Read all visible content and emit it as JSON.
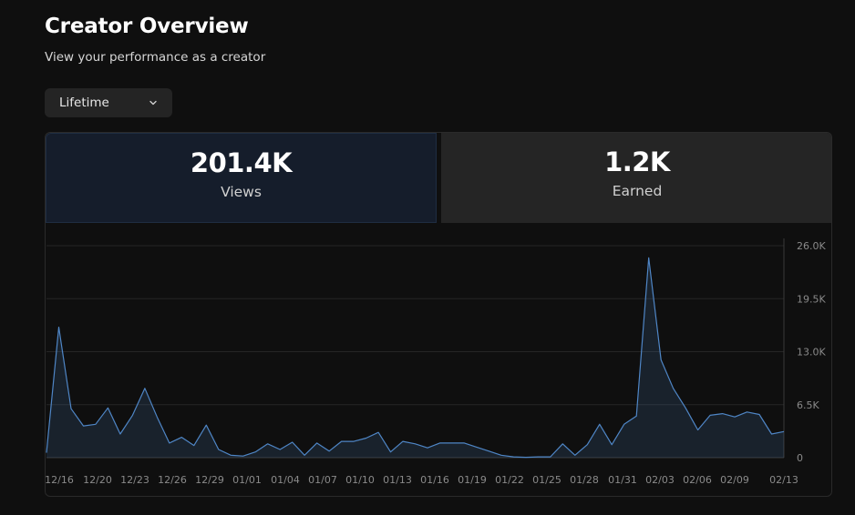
{
  "header": {
    "title": "Creator Overview",
    "subtitle": "View your performance as a creator"
  },
  "filter": {
    "selected": "Lifetime",
    "icon": "chevron-down-icon"
  },
  "stats": [
    {
      "value": "201.4K",
      "label": "Views",
      "active": true
    },
    {
      "value": "1.2K",
      "label": "Earned",
      "active": false
    }
  ],
  "colors": {
    "accent_line": "#4f86c6",
    "active_card": "#151d2b"
  },
  "chart_data": {
    "type": "area",
    "series": [
      {
        "values": [
          600,
          16000,
          6000,
          3900,
          4100,
          6100,
          2900,
          5200,
          8500,
          5000,
          1800,
          2500,
          1500,
          4000,
          1000,
          300,
          200,
          700,
          1700,
          1000,
          1900,
          300,
          1800,
          800,
          2000,
          2000,
          2400,
          3100,
          700,
          2000,
          1700,
          1200,
          1800,
          1800,
          1800,
          1300,
          800,
          300,
          100,
          50,
          100,
          100,
          1700,
          300,
          1600,
          4100,
          1600,
          4100,
          5100,
          24500,
          12000,
          8500,
          6100,
          3400,
          5200,
          5400,
          5000,
          5600,
          5300,
          2900,
          3200
        ]
      }
    ],
    "x_tick_labels": [
      "12/16",
      "12/20",
      "12/23",
      "12/26",
      "12/29",
      "01/01",
      "01/04",
      "01/07",
      "01/10",
      "01/13",
      "01/16",
      "01/19",
      "01/22",
      "01/25",
      "01/28",
      "01/31",
      "02/03",
      "02/06",
      "02/09",
      "02/13"
    ],
    "y_tick_labels": [
      "26.0K",
      "19.5K",
      "13.0K",
      "6.5K",
      "0"
    ],
    "ylim": [
      0,
      26000
    ],
    "grid": true,
    "y_axis_side": "right"
  }
}
